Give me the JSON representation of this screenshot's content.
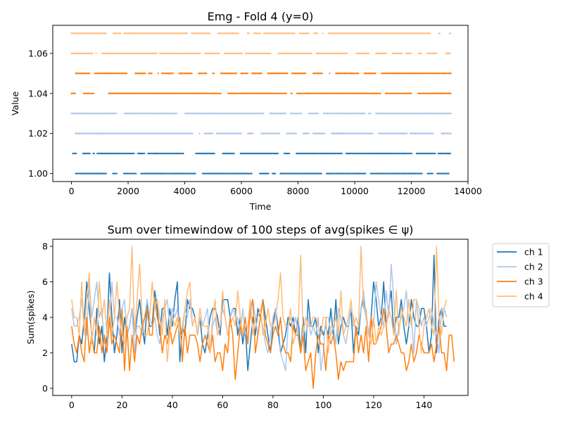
{
  "chart_data": [
    {
      "type": "scatter",
      "title": "Emg - Fold 4 (y=0)",
      "xlabel": "Time",
      "ylabel": "Value",
      "xlim": [
        -660,
        14000
      ],
      "ylim": [
        0.996,
        1.074
      ],
      "xticks": [
        0,
        2000,
        4000,
        6000,
        8000,
        10000,
        12000,
        14000
      ],
      "xtick_labels": [
        "0",
        "2000",
        "4000",
        "6000",
        "8000",
        "10000",
        "12000",
        "14000"
      ],
      "yticks": [
        1.0,
        1.02,
        1.04,
        1.06
      ],
      "ytick_labels": [
        "1.00",
        "1.02",
        "1.04",
        "1.06"
      ],
      "time_range": [
        0,
        13400
      ],
      "series": [
        {
          "y": 1.0,
          "x_start": 150,
          "x_end": 13400,
          "color": "#1f77b4"
        },
        {
          "y": 1.01,
          "x_start": 50,
          "x_end": 13400,
          "color": "#1f77b4"
        },
        {
          "y": 1.02,
          "x_start": 150,
          "x_end": 13400,
          "color": "#aec7e8"
        },
        {
          "y": 1.03,
          "x_start": 0,
          "x_end": 13400,
          "color": "#aec7e8"
        },
        {
          "y": 1.04,
          "x_start": 0,
          "x_end": 13400,
          "color": "#ff7f0e"
        },
        {
          "y": 1.05,
          "x_start": 150,
          "x_end": 13400,
          "color": "#ff7f0e"
        },
        {
          "y": 1.06,
          "x_start": 0,
          "x_end": 13400,
          "color": "#ffbb78"
        },
        {
          "y": 1.07,
          "x_start": 0,
          "x_end": 13400,
          "color": "#ffbb78"
        }
      ]
    },
    {
      "type": "line",
      "title": "Sum over timewindow of 100 steps of avg(spikes ∈ ψ)",
      "xlabel": "",
      "ylabel": "Sum(spikes)",
      "xlim": [
        -7.5,
        157.5
      ],
      "ylim": [
        -0.4,
        8.4
      ],
      "xticks": [
        0,
        20,
        40,
        60,
        80,
        100,
        120,
        140
      ],
      "xtick_labels": [
        "0",
        "20",
        "40",
        "60",
        "80",
        "100",
        "120",
        "140"
      ],
      "yticks": [
        0,
        2,
        4,
        6,
        8
      ],
      "ytick_labels": [
        "0",
        "2",
        "4",
        "6",
        "8"
      ],
      "legend_position": "outside-right",
      "series": [
        {
          "name": "ch 1",
          "color": "#1f77b4",
          "values": [
            2.5,
            1.5,
            1.5,
            3,
            2.5,
            4,
            6,
            4.5,
            3,
            2,
            4.5,
            2.5,
            3.5,
            1.5,
            3,
            6.5,
            4,
            2,
            3,
            5,
            2,
            4,
            3,
            3.5,
            4.5,
            3,
            4,
            5,
            3.5,
            2.5,
            5,
            3.5,
            3.5,
            5.5,
            4.5,
            3,
            4.5,
            4.5,
            3,
            4.5,
            3.5,
            5,
            6,
            1.5,
            3.5,
            3,
            5,
            4.5,
            4.5,
            4,
            3,
            4,
            2.5,
            2,
            3,
            4,
            4.5,
            4.5,
            4,
            3,
            5,
            5,
            5,
            4,
            4.5,
            4.5,
            3,
            4,
            2.5,
            3.5,
            1,
            2.5,
            4,
            3,
            4.5,
            4,
            5,
            4,
            3,
            2,
            3.5,
            4.5,
            3.5,
            2,
            2.5,
            3,
            4,
            3.5,
            4,
            3,
            4,
            2,
            4,
            2,
            5,
            3.5,
            3.5,
            4,
            2,
            3.5,
            3,
            3.5,
            3,
            4.5,
            3,
            5,
            2.5,
            3.5,
            4,
            3.5,
            3.5,
            4.5,
            2,
            3.5,
            3,
            4.5,
            5,
            4,
            3,
            4,
            6,
            5,
            3.5,
            4,
            6,
            3.5,
            4.5,
            5.5,
            3,
            4,
            4,
            5,
            3.5,
            2.5,
            3.5,
            5,
            4,
            3.5,
            3.5,
            4.5,
            4.5,
            3.5,
            2,
            3,
            7.5,
            2,
            4,
            4.5,
            3.5,
            3.5
          ]
        },
        {
          "name": "ch 2",
          "color": "#aec7e8",
          "values": [
            4.5,
            3.5,
            3.5,
            4,
            5,
            3.5,
            3,
            6,
            4,
            5,
            6,
            4,
            4.5,
            2.5,
            3,
            3.5,
            6,
            4,
            4,
            3,
            4.5,
            5,
            3,
            3.5,
            4.5,
            2,
            3.5,
            3.5,
            3,
            4,
            5,
            4,
            3.5,
            4,
            3,
            2.5,
            4,
            4.5,
            5,
            3.5,
            4.5,
            4,
            4.5,
            3,
            3.5,
            4.5,
            4,
            5,
            3.5,
            4,
            3,
            4,
            3.5,
            4,
            4.5,
            2,
            3.5,
            4,
            3,
            3.5,
            4.5,
            4,
            3,
            4,
            4.5,
            4,
            4,
            3,
            4.5,
            3,
            3.5,
            4,
            5,
            4,
            3,
            4,
            3.5,
            2.5,
            2,
            3,
            4,
            4.5,
            3,
            2,
            1.5,
            1,
            3.5,
            4,
            3.5,
            4,
            3,
            2,
            3.5,
            3,
            4,
            3,
            3.5,
            3,
            4,
            1,
            2,
            4,
            4,
            3,
            3.5,
            2.5,
            4.5,
            4,
            3,
            2.5,
            3.5,
            4.5,
            4,
            3,
            3.5,
            4.5,
            5.5,
            4,
            3,
            4,
            3.5,
            6,
            5,
            4,
            3.5,
            5.5,
            4,
            7,
            5,
            2.5,
            3.5,
            4,
            4.5,
            5.5,
            3.5,
            4,
            2,
            5,
            4.5,
            3.5,
            4,
            3.5,
            4,
            4.5,
            3.5,
            3,
            2,
            4.5,
            4.5,
            4
          ]
        },
        {
          "name": "ch 3",
          "color": "#ff7f0e",
          "values": [
            3.5,
            2.5,
            2,
            3,
            2,
            1.5,
            4,
            2,
            3,
            2,
            2,
            3.5,
            2,
            3,
            2,
            4,
            2.5,
            3,
            2.5,
            2,
            4.5,
            1,
            3.5,
            1,
            3,
            1.5,
            3,
            2.5,
            3.5,
            4,
            4.5,
            3,
            3,
            5,
            4,
            3.5,
            2,
            3,
            2.5,
            3.5,
            2.5,
            3,
            3.5,
            4,
            1.5,
            3.5,
            2,
            3,
            3,
            3,
            2.5,
            1.5,
            2.5,
            3,
            2.5,
            2,
            3,
            1.5,
            2,
            2,
            1,
            2.5,
            2,
            4,
            3,
            0.5,
            2,
            3.5,
            3,
            4,
            2.5,
            4.5,
            5,
            2,
            3,
            4,
            5,
            3,
            2.5,
            2,
            3,
            3.5,
            3,
            4,
            2.5,
            2,
            2,
            1.5,
            3.5,
            3,
            3,
            2,
            3,
            1,
            1.5,
            2,
            0,
            2,
            3,
            2.5,
            2.5,
            1,
            3,
            2.5,
            3,
            2,
            0.5,
            1.5,
            1,
            1.5,
            1.5,
            1.5,
            1.5,
            3.5,
            2,
            3,
            2,
            3.5,
            1.5,
            4,
            2.5,
            2.5,
            3,
            3.5,
            4.5,
            3.5,
            2,
            2.5,
            2.5,
            3,
            2.5,
            2,
            2,
            1,
            1.5,
            2.5,
            1.5,
            2,
            3,
            2.5,
            2,
            2,
            2,
            2.5,
            1.5,
            2.5,
            3.5,
            2,
            2,
            1,
            3,
            3,
            1.5
          ]
        },
        {
          "name": "ch 4",
          "color": "#ffbb78",
          "values": [
            5,
            4,
            4,
            3,
            6,
            3,
            5,
            6.5,
            2.5,
            4,
            3,
            6,
            4,
            5,
            3,
            5,
            3,
            4,
            6,
            4,
            3,
            2.5,
            4,
            4.5,
            8,
            3,
            5,
            7,
            4,
            3,
            3,
            4,
            6,
            4.5,
            5,
            4,
            3,
            5,
            1.5,
            3,
            4,
            3.5,
            4,
            3,
            3,
            4.5,
            5.5,
            6,
            3.5,
            4,
            3,
            4.5,
            3.5,
            3.5,
            3.5,
            2,
            4,
            5,
            3,
            3.5,
            5.5,
            4,
            3,
            3.5,
            4,
            3.5,
            5.5,
            4,
            3,
            3.5,
            3.5,
            5,
            3,
            4,
            4,
            4.5,
            3,
            3.5,
            4.5,
            3.5,
            3.5,
            4,
            5,
            6.5,
            4,
            3.5,
            3.5,
            4.5,
            2.5,
            3,
            3.5,
            7.5,
            3,
            4,
            3.5,
            3.5,
            4,
            4,
            3.5,
            3,
            4,
            4,
            2,
            3.5,
            3.5,
            4,
            3,
            5.5,
            3,
            3.5,
            4,
            5,
            3.5,
            4,
            3.5,
            8,
            4.5,
            4.5,
            3,
            2.5,
            4,
            2.5,
            3.5,
            3,
            3.5,
            3.5,
            4.5,
            4,
            3,
            5.5,
            3,
            4.5,
            4,
            3.5,
            5,
            3.5,
            5,
            5,
            3.5,
            2,
            3.5,
            4,
            4.5,
            3.5,
            3,
            8,
            4,
            3,
            4.5,
            5
          ]
        }
      ]
    }
  ]
}
